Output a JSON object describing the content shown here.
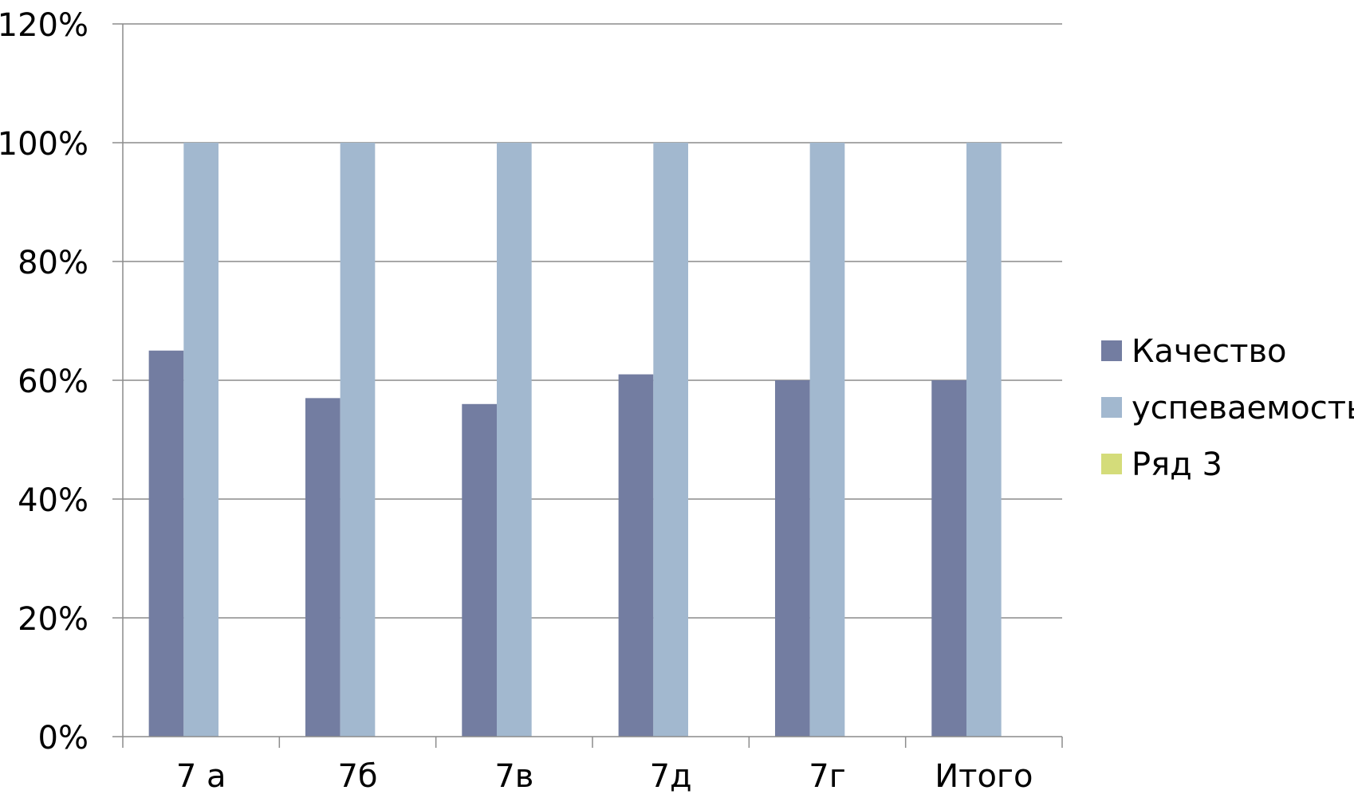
{
  "chart_data": {
    "type": "bar",
    "categories": [
      "7 а",
      "7б",
      "7в",
      "7д",
      "7г",
      "Итого"
    ],
    "series": [
      {
        "name": "Качество",
        "values": [
          65,
          57,
          56,
          61,
          60,
          60
        ],
        "color": "#737DA1"
      },
      {
        "name": "успеваемость",
        "values": [
          100,
          100,
          100,
          100,
          100,
          100
        ],
        "color": "#A2B8CF"
      },
      {
        "name": "Ряд 3",
        "values": [
          0,
          0,
          0,
          0,
          0,
          0
        ],
        "color": "#D4DC7A"
      }
    ],
    "y_ticks": [
      "0%",
      "20%",
      "40%",
      "60%",
      "80%",
      "100%",
      "120%"
    ],
    "ylim": [
      0,
      120
    ],
    "grid": true,
    "legend_position": "right"
  }
}
